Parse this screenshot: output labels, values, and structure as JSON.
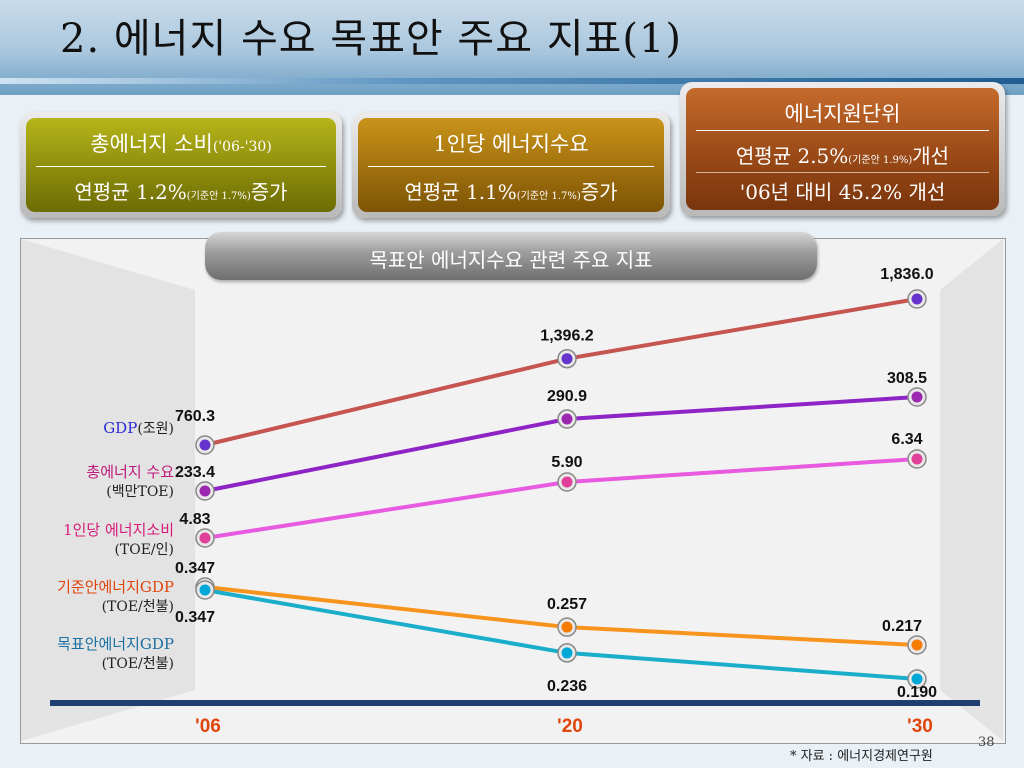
{
  "title": "2. 에너지 수요 목표안 주요 지표(1)",
  "boxes": {
    "total": {
      "heading": "총에너지 소비",
      "heading_small": "('06-'30)",
      "value_prefix": "연평균 1.2%",
      "value_small": "(기준안 1.7%)",
      "value_suffix": "증가"
    },
    "percap": {
      "heading": "1인당 에너지수요",
      "value_prefix": "연평균 1.1%",
      "value_small": "(기준안 1.7%)",
      "value_suffix": "증가"
    },
    "intensity": {
      "heading": "에너지원단위",
      "value_prefix": "연평균 2.5%",
      "value_small": "(기준안 1.9%)",
      "value_suffix": "개선",
      "value2": "'06년 대비 45.2% 개선"
    }
  },
  "chart_title": "목표안 에너지수요 관련 주요 지표",
  "legend": [
    {
      "label": "GDP",
      "unit": "(조원)",
      "color": "#2b2bd6"
    },
    {
      "label": "총에너지 수요",
      "unit": "(백만TOE)",
      "color": "#c0187a"
    },
    {
      "label": "1인당 에너지소비",
      "unit": "(TOE/인)",
      "color": "#d81b7a"
    },
    {
      "label": "기준안에너지GDP",
      "unit": "(TOE/천불)",
      "color": "#e0450c"
    },
    {
      "label": "목표안에너지GDP",
      "unit": "(TOE/천불)",
      "color": "#1a6fa3"
    }
  ],
  "chart_data": {
    "type": "line",
    "x": [
      "'06",
      "'20",
      "'30"
    ],
    "series": [
      {
        "name": "GDP",
        "values": [
          760.3,
          1396.2,
          1836.0
        ],
        "labels": [
          "760.3",
          "1,396.2",
          "1,836.0"
        ],
        "color": "#c65450",
        "marker": "#6633cc"
      },
      {
        "name": "총에너지 수요",
        "values": [
          233.4,
          290.9,
          308.5
        ],
        "labels": [
          "233.4",
          "290.9",
          "308.5"
        ],
        "color": "#8e24c6",
        "marker": "#9c27b0"
      },
      {
        "name": "1인당 에너지소비",
        "values": [
          4.83,
          5.9,
          6.34
        ],
        "labels": [
          "4.83",
          "5.90",
          "6.34"
        ],
        "color": "#e85be0",
        "marker": "#e0409a"
      },
      {
        "name": "기준안에너지GDP",
        "values": [
          0.347,
          0.257,
          0.217
        ],
        "labels": [
          "0.347",
          "0.257",
          "0.217"
        ],
        "color": "#f7941d",
        "marker": "#f57c00"
      },
      {
        "name": "목표안에너지GDP",
        "values": [
          0.347,
          0.236,
          0.19
        ],
        "labels": [
          "0.347",
          "0.236",
          "0.190"
        ],
        "color": "#1aaecb",
        "marker": "#00a8d8"
      }
    ],
    "x_tick_color": "#e0450c"
  },
  "source": "* 자료 : 에너지경제연구원",
  "page_number": "38"
}
